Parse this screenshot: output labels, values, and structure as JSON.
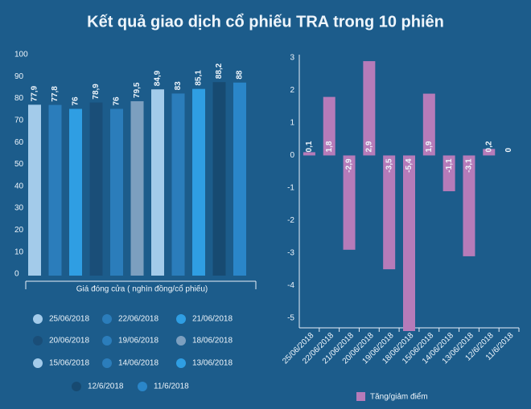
{
  "title": "Kết quả giao dịch cổ phiếu TRA trong 10 phiên",
  "chart_data": [
    {
      "type": "bar",
      "categories": [
        "25/06/2018",
        "22/06/2018",
        "21/06/2018",
        "20/06/2018",
        "19/06/2018",
        "18/06/2018",
        "15/06/2018",
        "14/06/2018",
        "13/06/2018",
        "12/6/2018",
        "11/6/2018"
      ],
      "values": [
        77.9,
        77.8,
        76,
        78.9,
        76,
        79.5,
        84.9,
        83,
        85.1,
        88.2,
        88
      ],
      "value_labels": [
        "77,9",
        "77,8",
        "76",
        "78,9",
        "76",
        "79,5",
        "84,9",
        "83",
        "85,1",
        "88,2",
        "88"
      ],
      "colors": [
        "#a3cbea",
        "#2b7dbb",
        "#2f9ee3",
        "#1a4e78",
        "#2b7dbb",
        "#7c9fbf",
        "#a3cbea",
        "#2b7dbb",
        "#2f9ee3",
        "#174a71",
        "#2a86c9"
      ],
      "xlabel": "Giá đóng cửa ( nghìn đồng/cổ phiếu)",
      "ylim": [
        0,
        100
      ],
      "yticks": [
        0,
        10,
        20,
        30,
        40,
        50,
        60,
        70,
        80,
        90,
        100
      ]
    },
    {
      "type": "bar",
      "categories": [
        "25/06/2018",
        "22/06/2018",
        "21/06/2018",
        "20/06/2018",
        "19/06/2018",
        "18/06/2018",
        "15/06/2018",
        "14/06/2018",
        "13/06/2018",
        "12/6/2018",
        "11/6/2018"
      ],
      "series": [
        {
          "name": "Tăng/giảm điểm",
          "color": "#b67bb9",
          "values": [
            0.1,
            1.8,
            -2.9,
            2.9,
            -3.5,
            -5.4,
            1.9,
            -1.1,
            -3.1,
            0.2,
            0
          ],
          "value_labels": [
            "0,1",
            "1,8",
            "-2,9",
            "2,9",
            "-3,5",
            "-5,4",
            "1,9",
            "-1,1",
            "-3,1",
            "0,2",
            "0"
          ]
        }
      ],
      "ylim": [
        -5.4,
        3.1
      ],
      "yticks": [
        -5,
        -4,
        -3,
        -2,
        -1,
        0,
        1,
        2,
        3
      ]
    }
  ]
}
